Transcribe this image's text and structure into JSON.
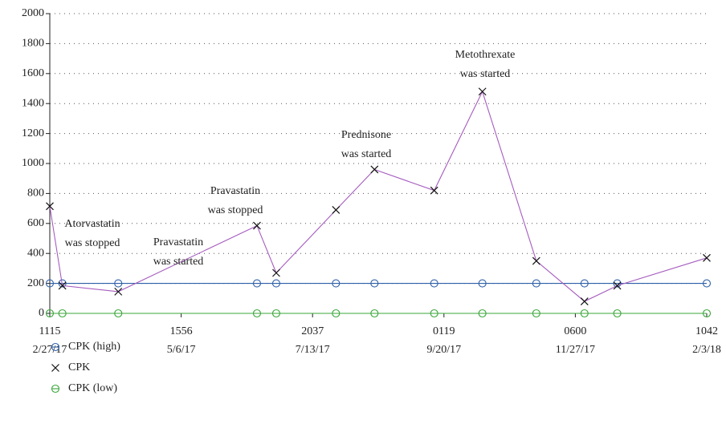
{
  "chart_data": {
    "type": "line",
    "xlim": [
      "2017-02-27T11:15",
      "2018-02-03T10:42"
    ],
    "xticks": [
      {
        "value": "2017-02-27T11:15",
        "label": [
          "1115",
          "2/27/17"
        ]
      },
      {
        "value": "2017-05-06T15:56",
        "label": [
          "1556",
          "5/6/17"
        ]
      },
      {
        "value": "2017-07-13T20:37",
        "label": [
          "2037",
          "7/13/17"
        ]
      },
      {
        "value": "2017-09-20T01:19",
        "label": [
          "0119",
          "9/20/17"
        ]
      },
      {
        "value": "2017-11-27T06:00",
        "label": [
          "0600",
          "11/27/17"
        ]
      },
      {
        "value": "2018-02-03T10:42",
        "label": [
          "1042",
          "2/3/18"
        ]
      }
    ],
    "ylim": [
      0,
      2000
    ],
    "yticks": [
      0,
      200,
      400,
      600,
      800,
      1000,
      1200,
      1400,
      1600,
      1800,
      2000
    ],
    "grid": true,
    "x": [
      "2017-02-27T11:15",
      "2017-03-06",
      "2017-04-04",
      "2017-06-15",
      "2017-06-25",
      "2017-07-26",
      "2017-08-15",
      "2017-09-15",
      "2017-10-10",
      "2017-11-07",
      "2017-12-02",
      "2017-12-19",
      "2018-02-03T10:42"
    ],
    "series": [
      {
        "name": "CPK (high)",
        "color": "#2e5fa8",
        "marker": "circle",
        "values": [
          200,
          200,
          200,
          200,
          200,
          200,
          200,
          200,
          200,
          200,
          200,
          200,
          200
        ]
      },
      {
        "name": "CPK",
        "color": "#a65cbf",
        "marker_color": "#111111",
        "marker": "x",
        "values": [
          715,
          185,
          145,
          585,
          270,
          690,
          960,
          820,
          1480,
          350,
          80,
          185,
          370
        ]
      },
      {
        "name": "CPK (low)",
        "color": "#3aa63a",
        "marker": "circle",
        "values": [
          0,
          0,
          0,
          0,
          0,
          0,
          0,
          0,
          0,
          0,
          0,
          0,
          0
        ]
      }
    ],
    "annotations": [
      [
        "Atorvastatin",
        "was stopped"
      ],
      [
        "Pravastatin",
        "was started"
      ],
      [
        "Pravastatin",
        "was stopped"
      ],
      [
        "Prednisone",
        "was started"
      ],
      [
        "Metothrexate",
        "was started"
      ]
    ]
  }
}
